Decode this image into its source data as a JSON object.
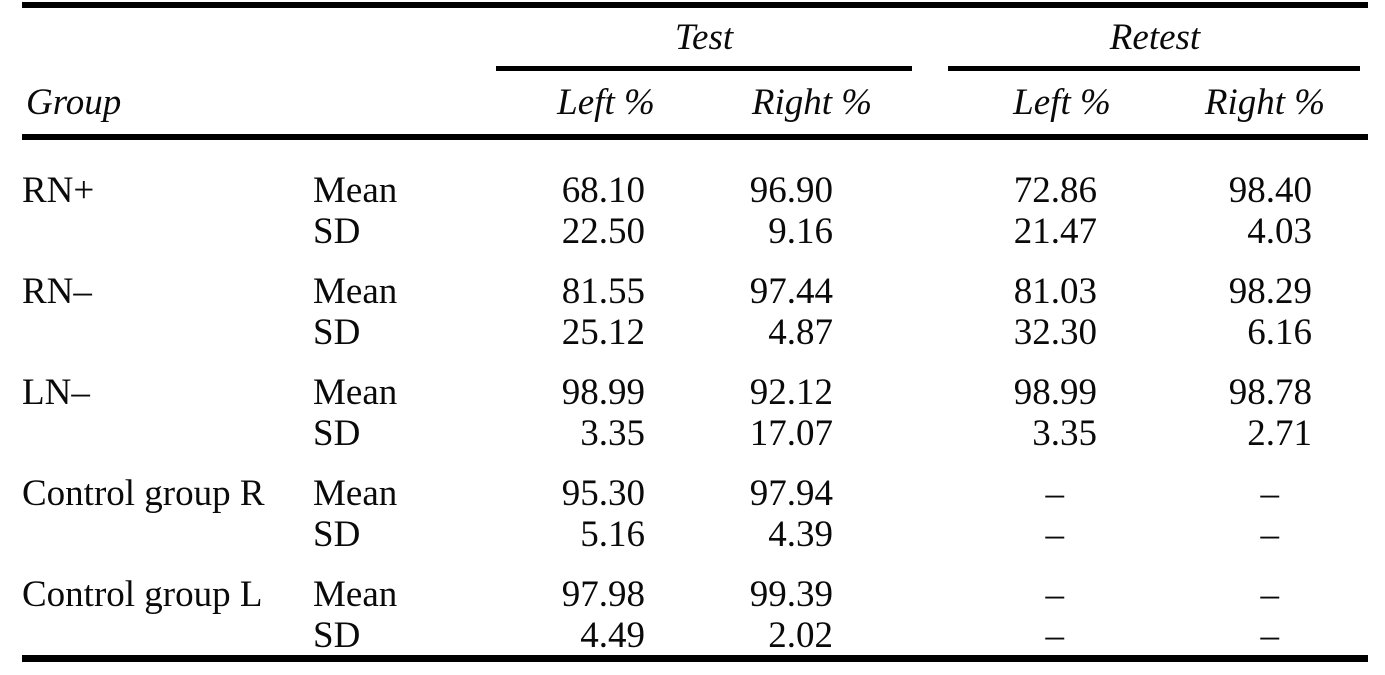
{
  "table": {
    "header": {
      "group_col": "Group",
      "spanners": {
        "test": "Test",
        "retest": "Retest"
      },
      "subcolumns": {
        "test_left": "Left %",
        "test_right": "Right %",
        "retest_left": "Left %",
        "retest_right": "Right %"
      }
    },
    "labels": {
      "mean": "Mean",
      "sd": "SD"
    },
    "missing_marker": "–",
    "groups": [
      {
        "name": "RN+",
        "mean": [
          "68.10",
          "96.90",
          "72.86",
          "98.40"
        ],
        "sd": [
          "22.50",
          "9.16",
          "21.47",
          "4.03"
        ]
      },
      {
        "name": "RN–",
        "mean": [
          "81.55",
          "97.44",
          "81.03",
          "98.29"
        ],
        "sd": [
          "25.12",
          "4.87",
          "32.30",
          "6.16"
        ]
      },
      {
        "name": "LN–",
        "mean": [
          "98.99",
          "92.12",
          "98.99",
          "98.78"
        ],
        "sd": [
          "3.35",
          "17.07",
          "3.35",
          "2.71"
        ]
      },
      {
        "name": "Control group R",
        "mean": [
          "95.30",
          "97.94",
          "–",
          "–"
        ],
        "sd": [
          "5.16",
          "4.39",
          "–",
          "–"
        ]
      },
      {
        "name": "Control group L",
        "mean": [
          "97.98",
          "99.39",
          "–",
          "–"
        ],
        "sd": [
          "4.49",
          "2.02",
          "–",
          "–"
        ]
      }
    ]
  },
  "colors": {
    "background": "#ffffff",
    "text": "#0a0a0a",
    "rule": "#000000"
  }
}
